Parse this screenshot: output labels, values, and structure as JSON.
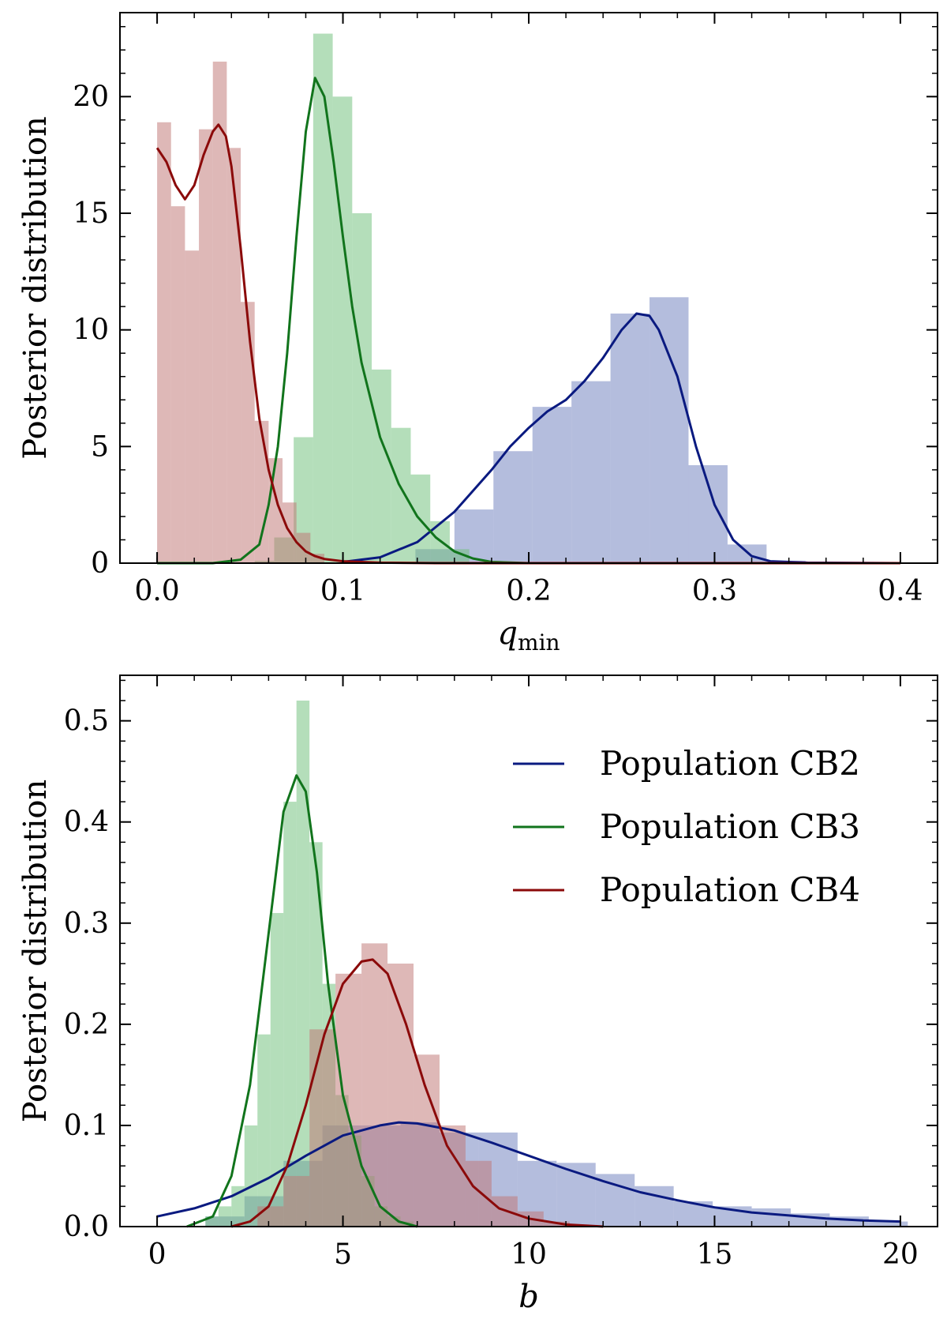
{
  "colors": {
    "CB2": "#0a1a80",
    "CB3": "#11741c",
    "CB4": "#8b0a0a",
    "CB2_fill": "#6f80bd",
    "CB3_fill": "#6fbf7a",
    "CB4_fill": "#c07774"
  },
  "chart_data": [
    {
      "type": "bar",
      "panel": "top",
      "xlabel": "q",
      "xlabel_sub": "min",
      "ylabel": "Posterior distribution",
      "xlim": [
        -0.02,
        0.42
      ],
      "ylim": [
        0,
        23.6
      ],
      "xticks": [
        0.0,
        0.1,
        0.2,
        0.3,
        0.4
      ],
      "xtick_labels": [
        "0.0",
        "0.1",
        "0.2",
        "0.3",
        "0.4"
      ],
      "yticks": [
        0,
        5,
        10,
        15,
        20
      ],
      "ytick_labels": [
        "0",
        "5",
        "10",
        "15",
        "20"
      ],
      "series": [
        {
          "name": "Population CB2",
          "key": "CB2",
          "bin_width": 0.021,
          "bins": [
            [
              0.139,
              0.6
            ],
            [
              0.16,
              2.3
            ],
            [
              0.181,
              4.8
            ],
            [
              0.202,
              6.7
            ],
            [
              0.223,
              7.8
            ],
            [
              0.244,
              10.7
            ],
            [
              0.265,
              11.4
            ],
            [
              0.286,
              4.2
            ],
            [
              0.307,
              0.8
            ],
            [
              0.328,
              0.1
            ]
          ],
          "curve": [
            [
              0.1,
              0.05
            ],
            [
              0.12,
              0.25
            ],
            [
              0.14,
              0.9
            ],
            [
              0.16,
              2.2
            ],
            [
              0.18,
              4.0
            ],
            [
              0.19,
              5.0
            ],
            [
              0.2,
              5.8
            ],
            [
              0.21,
              6.5
            ],
            [
              0.22,
              7.0
            ],
            [
              0.23,
              7.8
            ],
            [
              0.24,
              8.8
            ],
            [
              0.25,
              10.0
            ],
            [
              0.258,
              10.7
            ],
            [
              0.265,
              10.6
            ],
            [
              0.27,
              10.0
            ],
            [
              0.28,
              8.0
            ],
            [
              0.29,
              5.0
            ],
            [
              0.3,
              2.5
            ],
            [
              0.31,
              1.0
            ],
            [
              0.32,
              0.3
            ],
            [
              0.33,
              0.08
            ],
            [
              0.35,
              0.02
            ],
            [
              0.4,
              0.0
            ]
          ]
        },
        {
          "name": "Population CB3",
          "key": "CB3",
          "bin_width": 0.0105,
          "bins": [
            [
              0.0525,
              0.1
            ],
            [
              0.063,
              1.1
            ],
            [
              0.0735,
              5.4
            ],
            [
              0.084,
              22.7
            ],
            [
              0.0945,
              20.0
            ],
            [
              0.105,
              15.0
            ],
            [
              0.1155,
              8.3
            ],
            [
              0.126,
              5.8
            ],
            [
              0.1365,
              3.8
            ],
            [
              0.147,
              1.8
            ],
            [
              0.1575,
              0.6
            ]
          ],
          "curve": [
            [
              0.0,
              0.0
            ],
            [
              0.03,
              0.0
            ],
            [
              0.045,
              0.15
            ],
            [
              0.055,
              0.8
            ],
            [
              0.06,
              2.5
            ],
            [
              0.065,
              5.0
            ],
            [
              0.07,
              9.0
            ],
            [
              0.075,
              14.0
            ],
            [
              0.08,
              18.5
            ],
            [
              0.085,
              20.8
            ],
            [
              0.09,
              20.0
            ],
            [
              0.095,
              17.2
            ],
            [
              0.1,
              14.0
            ],
            [
              0.105,
              11.0
            ],
            [
              0.11,
              8.6
            ],
            [
              0.12,
              5.4
            ],
            [
              0.13,
              3.4
            ],
            [
              0.14,
              2.0
            ],
            [
              0.15,
              1.1
            ],
            [
              0.16,
              0.5
            ],
            [
              0.17,
              0.2
            ],
            [
              0.18,
              0.05
            ],
            [
              0.2,
              0.0
            ],
            [
              0.4,
              0.0
            ]
          ]
        },
        {
          "name": "Population CB4",
          "key": "CB4",
          "bin_width": 0.0075,
          "bins": [
            [
              0.0,
              18.9
            ],
            [
              0.0075,
              15.3
            ],
            [
              0.015,
              13.4
            ],
            [
              0.0225,
              18.6
            ],
            [
              0.03,
              21.5
            ],
            [
              0.0375,
              17.8
            ],
            [
              0.045,
              11.2
            ],
            [
              0.0525,
              6.1
            ],
            [
              0.06,
              4.5
            ],
            [
              0.0675,
              2.6
            ],
            [
              0.075,
              1.3
            ],
            [
              0.0825,
              0.4
            ]
          ],
          "curve": [
            [
              0.0,
              17.8
            ],
            [
              0.005,
              17.2
            ],
            [
              0.01,
              16.2
            ],
            [
              0.015,
              15.6
            ],
            [
              0.02,
              16.2
            ],
            [
              0.025,
              17.5
            ],
            [
              0.03,
              18.5
            ],
            [
              0.033,
              18.8
            ],
            [
              0.037,
              18.3
            ],
            [
              0.04,
              17.0
            ],
            [
              0.045,
              13.5
            ],
            [
              0.05,
              9.5
            ],
            [
              0.055,
              6.2
            ],
            [
              0.06,
              4.0
            ],
            [
              0.065,
              2.5
            ],
            [
              0.07,
              1.5
            ],
            [
              0.075,
              0.9
            ],
            [
              0.08,
              0.5
            ],
            [
              0.085,
              0.3
            ],
            [
              0.09,
              0.18
            ],
            [
              0.1,
              0.08
            ],
            [
              0.12,
              0.02
            ],
            [
              0.15,
              0.0
            ],
            [
              0.4,
              0.0
            ]
          ]
        }
      ]
    },
    {
      "type": "bar",
      "panel": "bottom",
      "xlabel": "b",
      "ylabel": "Posterior distribution",
      "xlim": [
        -1.0,
        21.0
      ],
      "ylim": [
        0,
        0.545
      ],
      "xticks": [
        0,
        5,
        10,
        15,
        20
      ],
      "xtick_labels": [
        "0",
        "5",
        "10",
        "15",
        "20"
      ],
      "yticks": [
        0.0,
        0.1,
        0.2,
        0.3,
        0.4,
        0.5
      ],
      "ytick_labels": [
        "0.0",
        "0.1",
        "0.2",
        "0.3",
        "0.4",
        "0.5"
      ],
      "legend_position": "top-right",
      "series": [
        {
          "name": "Population CB2",
          "key": "CB2",
          "bin_width": 1.05,
          "bins": [
            [
              1.3,
              0.01
            ],
            [
              2.35,
              0.03
            ],
            [
              3.4,
              0.065
            ],
            [
              4.45,
              0.1
            ],
            [
              5.5,
              0.1
            ],
            [
              6.55,
              0.103
            ],
            [
              7.6,
              0.093
            ],
            [
              8.65,
              0.093
            ],
            [
              9.7,
              0.065
            ],
            [
              10.75,
              0.063
            ],
            [
              11.8,
              0.052
            ],
            [
              12.85,
              0.04
            ],
            [
              13.9,
              0.025
            ],
            [
              14.95,
              0.02
            ],
            [
              16.0,
              0.018
            ],
            [
              17.05,
              0.013
            ],
            [
              18.1,
              0.01
            ],
            [
              19.15,
              0.005
            ]
          ],
          "curve": [
            [
              0,
              0.01
            ],
            [
              1,
              0.018
            ],
            [
              2,
              0.03
            ],
            [
              3,
              0.048
            ],
            [
              4,
              0.07
            ],
            [
              5,
              0.09
            ],
            [
              6,
              0.1
            ],
            [
              6.5,
              0.103
            ],
            [
              7,
              0.102
            ],
            [
              8,
              0.095
            ],
            [
              9,
              0.083
            ],
            [
              10,
              0.07
            ],
            [
              11,
              0.057
            ],
            [
              12,
              0.045
            ],
            [
              13,
              0.034
            ],
            [
              14,
              0.026
            ],
            [
              15,
              0.019
            ],
            [
              16,
              0.014
            ],
            [
              17,
              0.011
            ],
            [
              18,
              0.008
            ],
            [
              19,
              0.006
            ],
            [
              20,
              0.005
            ]
          ]
        },
        {
          "name": "Population CB3",
          "key": "CB3",
          "bin_width": 0.35,
          "bins": [
            [
              1.3,
              0.01
            ],
            [
              1.65,
              0.02
            ],
            [
              2.0,
              0.04
            ],
            [
              2.35,
              0.1
            ],
            [
              2.7,
              0.19
            ],
            [
              3.05,
              0.31
            ],
            [
              3.4,
              0.42
            ],
            [
              3.75,
              0.52
            ],
            [
              4.1,
              0.38
            ],
            [
              4.45,
              0.24
            ],
            [
              4.8,
              0.13
            ],
            [
              5.15,
              0.09
            ],
            [
              5.5,
              0.05
            ],
            [
              5.85,
              0.02
            ],
            [
              6.2,
              0.01
            ],
            [
              6.55,
              0.005
            ]
          ],
          "curve": [
            [
              0.8,
              0.0
            ],
            [
              1.5,
              0.01
            ],
            [
              2.0,
              0.05
            ],
            [
              2.5,
              0.14
            ],
            [
              3.0,
              0.29
            ],
            [
              3.4,
              0.41
            ],
            [
              3.75,
              0.446
            ],
            [
              4.0,
              0.43
            ],
            [
              4.3,
              0.35
            ],
            [
              4.6,
              0.24
            ],
            [
              5.0,
              0.13
            ],
            [
              5.5,
              0.06
            ],
            [
              6.0,
              0.02
            ],
            [
              6.5,
              0.005
            ],
            [
              7.0,
              0.0
            ]
          ]
        },
        {
          "name": "Population CB4",
          "key": "CB4",
          "bin_width": 0.7,
          "bins": [
            [
              2.7,
              0.02
            ],
            [
              3.4,
              0.05
            ],
            [
              4.1,
              0.195
            ],
            [
              4.8,
              0.25
            ],
            [
              5.5,
              0.28
            ],
            [
              6.2,
              0.26
            ],
            [
              6.9,
              0.17
            ],
            [
              7.6,
              0.1
            ],
            [
              8.3,
              0.065
            ],
            [
              9.0,
              0.03
            ],
            [
              9.7,
              0.015
            ],
            [
              10.4,
              0.005
            ]
          ],
          "curve": [
            [
              2.0,
              0.0
            ],
            [
              2.5,
              0.005
            ],
            [
              3.0,
              0.02
            ],
            [
              3.5,
              0.06
            ],
            [
              4.0,
              0.12
            ],
            [
              4.5,
              0.19
            ],
            [
              5.0,
              0.24
            ],
            [
              5.5,
              0.262
            ],
            [
              5.8,
              0.264
            ],
            [
              6.2,
              0.25
            ],
            [
              6.7,
              0.2
            ],
            [
              7.2,
              0.14
            ],
            [
              7.8,
              0.08
            ],
            [
              8.5,
              0.04
            ],
            [
              9.2,
              0.018
            ],
            [
              10.0,
              0.008
            ],
            [
              11.0,
              0.002
            ],
            [
              12.0,
              0.0
            ]
          ]
        }
      ]
    }
  ]
}
